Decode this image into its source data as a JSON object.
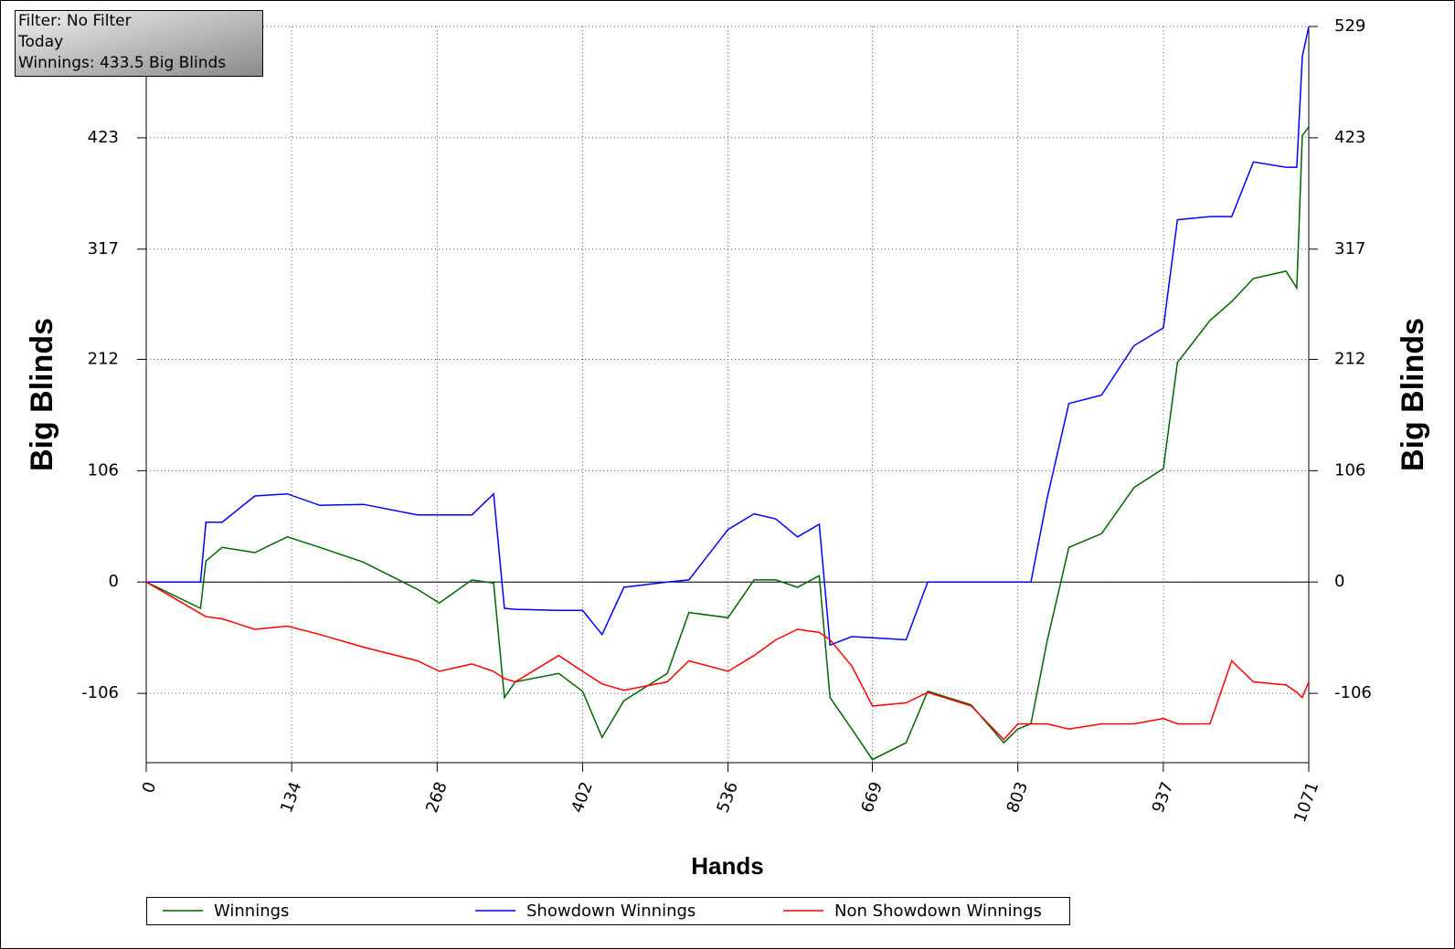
{
  "chart_data": {
    "type": "line",
    "annotations": [
      "Filter: No Filter",
      "Today",
      "Winnings: 433.5 Big Blinds"
    ],
    "xlabel": "Hands",
    "ylabel": "Big Blinds",
    "y2label": "Big Blinds",
    "x": [
      0,
      50,
      55,
      70,
      100,
      130,
      160,
      200,
      250,
      270,
      300,
      320,
      330,
      340,
      380,
      402,
      420,
      440,
      480,
      500,
      536,
      560,
      580,
      600,
      620,
      630,
      650,
      669,
      700,
      720,
      760,
      790,
      803,
      815,
      830,
      850,
      880,
      910,
      937,
      950,
      980,
      1000,
      1020,
      1050,
      1060,
      1065,
      1071
    ],
    "series": [
      {
        "name": "Winnings",
        "color": "#006400",
        "values": [
          0,
          -25,
          20,
          33,
          28,
          43,
          33,
          19,
          -7,
          -20,
          2,
          -1,
          -110,
          -95,
          -87,
          -104,
          -148,
          -113,
          -87,
          -29,
          -34,
          2,
          2,
          -5,
          6,
          -110,
          -140,
          -169,
          -153,
          -104,
          -117,
          -153,
          -140,
          -135,
          -56,
          33,
          46,
          90,
          108,
          209,
          249,
          267,
          289,
          296,
          280,
          425,
          433.5
        ]
      },
      {
        "name": "Showdown Winnings",
        "color": "#0000ff",
        "values": [
          0,
          0,
          57,
          57,
          82,
          84,
          73,
          74,
          64,
          64,
          64,
          84,
          -25,
          -26,
          -27,
          -27,
          -50,
          -5,
          0,
          2,
          50,
          65,
          60,
          43,
          55,
          -60,
          -52,
          -53,
          -55,
          0,
          0,
          0,
          0,
          0,
          80,
          170,
          178,
          225,
          242,
          345,
          348,
          348,
          400,
          395,
          395,
          500,
          529
        ]
      },
      {
        "name": "Non Showdown Winnings",
        "color": "#ff0000",
        "values": [
          0,
          -30,
          -33,
          -35,
          -45,
          -42,
          -50,
          -62,
          -75,
          -85,
          -78,
          -85,
          -92,
          -95,
          -70,
          -85,
          -97,
          -103,
          -95,
          -75,
          -85,
          -70,
          -55,
          -45,
          -48,
          -55,
          -80,
          -118,
          -115,
          -105,
          -118,
          -150,
          -135,
          -135,
          -135,
          -140,
          -135,
          -135,
          -130,
          -135,
          -135,
          -75,
          -95,
          -98,
          -105,
          -110,
          -95
        ]
      }
    ],
    "xlim": [
      0,
      1071
    ],
    "xticks": [
      0,
      134,
      268,
      402,
      536,
      669,
      803,
      937,
      1071
    ],
    "ylim": [
      -172,
      529
    ],
    "yticks": [
      -106,
      0,
      106,
      212,
      317,
      423,
      529
    ],
    "y2lim": [
      -172,
      529
    ],
    "y2ticks": [
      -106,
      0,
      106,
      212,
      317,
      423,
      529
    ],
    "grid": true
  }
}
